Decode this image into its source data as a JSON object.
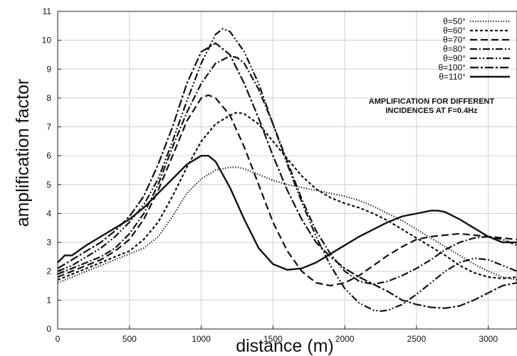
{
  "chart_data": {
    "type": "line",
    "title": "",
    "xlabel": "distance (m)",
    "ylabel": "amplification factor",
    "xlim": [
      0,
      3200
    ],
    "ylim": [
      0,
      11
    ],
    "grid": true,
    "legend_position": "top-right",
    "annotation": [
      "AMPLIFICATION FOR DIFFERENT",
      "INCIDENCES AT F=0.4Hz"
    ],
    "xticks": [
      0,
      500,
      1000,
      1500,
      2000,
      2500,
      3000
    ],
    "yticks": [
      0,
      1,
      2,
      3,
      4,
      5,
      6,
      7,
      8,
      9,
      10,
      11
    ],
    "series": [
      {
        "name": "θ=50°",
        "dash": "1.2,2.4",
        "width": 2.2,
        "x": [
          0,
          100,
          200,
          300,
          400,
          500,
          600,
          700,
          800,
          900,
          1000,
          1100,
          1200,
          1250,
          1300,
          1400,
          1500,
          1600,
          1700,
          1800,
          1900,
          2000,
          2100,
          2200,
          2300,
          2400,
          2500,
          2600,
          2700,
          2800,
          2900,
          3000,
          3100,
          3200
        ],
        "y": [
          1.6,
          1.8,
          2.0,
          2.2,
          2.4,
          2.6,
          2.8,
          3.2,
          3.9,
          4.7,
          5.2,
          5.5,
          5.6,
          5.6,
          5.55,
          5.35,
          5.15,
          5.0,
          4.9,
          4.8,
          4.7,
          4.6,
          4.45,
          4.25,
          4.0,
          3.75,
          3.45,
          3.15,
          2.85,
          2.55,
          2.25,
          2.0,
          1.8,
          1.7
        ]
      },
      {
        "name": "θ=60°",
        "dash": "4,3",
        "width": 2.2,
        "x": [
          0,
          100,
          200,
          300,
          400,
          500,
          600,
          700,
          800,
          900,
          1000,
          1100,
          1200,
          1250,
          1300,
          1400,
          1500,
          1600,
          1700,
          1800,
          1900,
          2000,
          2100,
          2200,
          2300,
          2400,
          2500,
          2600,
          2700,
          2800,
          2900,
          3000,
          3100,
          3200
        ],
        "y": [
          1.7,
          1.9,
          2.1,
          2.3,
          2.5,
          2.7,
          3.1,
          3.7,
          4.6,
          5.6,
          6.5,
          7.1,
          7.4,
          7.5,
          7.45,
          7.1,
          6.5,
          5.9,
          5.3,
          4.85,
          4.55,
          4.35,
          4.2,
          4.0,
          3.75,
          3.45,
          3.15,
          2.85,
          2.55,
          2.2,
          1.95,
          1.8,
          1.75,
          1.8
        ]
      },
      {
        "name": "θ=70°",
        "dash": "10,5",
        "width": 2.2,
        "x": [
          0,
          100,
          200,
          300,
          400,
          500,
          600,
          700,
          800,
          900,
          1000,
          1050,
          1100,
          1200,
          1300,
          1400,
          1500,
          1600,
          1700,
          1800,
          1900,
          2000,
          2100,
          2200,
          2300,
          2400,
          2500,
          2600,
          2700,
          2800,
          2900,
          3000,
          3100,
          3200
        ],
        "y": [
          1.8,
          2.0,
          2.2,
          2.4,
          2.7,
          3.1,
          3.8,
          4.8,
          6.0,
          7.2,
          8.0,
          8.1,
          8.0,
          7.4,
          6.3,
          5.0,
          3.7,
          2.7,
          2.0,
          1.6,
          1.5,
          1.6,
          1.85,
          2.2,
          2.55,
          2.85,
          3.1,
          3.2,
          3.25,
          3.3,
          3.25,
          3.2,
          3.15,
          3.1
        ]
      },
      {
        "name": "θ=80°",
        "dash": "10,3,2,3",
        "width": 2.2,
        "x": [
          0,
          100,
          200,
          300,
          400,
          500,
          600,
          700,
          800,
          900,
          1000,
          1100,
          1200,
          1250,
          1300,
          1400,
          1500,
          1600,
          1700,
          1800,
          1900,
          2000,
          2100,
          2200,
          2300,
          2400,
          2500,
          2600,
          2700,
          2800,
          2900,
          3000,
          3100,
          3200
        ],
        "y": [
          1.9,
          2.1,
          2.3,
          2.5,
          2.8,
          3.3,
          4.0,
          5.0,
          6.3,
          7.5,
          8.5,
          9.2,
          9.45,
          9.4,
          9.2,
          8.3,
          7.1,
          5.8,
          4.5,
          3.4,
          2.6,
          2.0,
          1.65,
          1.55,
          1.65,
          1.85,
          2.1,
          2.4,
          2.75,
          3.0,
          3.15,
          3.2,
          3.1,
          2.9
        ]
      },
      {
        "name": "θ=90°",
        "dash": "10,3,2,3,2,3",
        "width": 2.2,
        "x": [
          0,
          100,
          200,
          300,
          400,
          500,
          600,
          700,
          800,
          900,
          1000,
          1100,
          1150,
          1200,
          1300,
          1400,
          1500,
          1600,
          1700,
          1800,
          1900,
          2000,
          2100,
          2200,
          2250,
          2300,
          2400,
          2500,
          2600,
          2700,
          2800,
          2900,
          3000,
          3100,
          3200
        ],
        "y": [
          2.0,
          2.2,
          2.5,
          2.8,
          3.2,
          3.7,
          4.3,
          5.2,
          6.5,
          7.9,
          9.2,
          10.2,
          10.4,
          10.3,
          9.6,
          8.5,
          7.1,
          5.7,
          4.4,
          3.2,
          2.2,
          1.4,
          0.9,
          0.65,
          0.62,
          0.65,
          0.85,
          1.2,
          1.6,
          2.0,
          2.3,
          2.45,
          2.4,
          2.2,
          2.0
        ]
      },
      {
        "name": "θ=100°",
        "dash": "12,3,3,3",
        "width": 2.2,
        "x": [
          0,
          100,
          200,
          300,
          400,
          500,
          600,
          700,
          800,
          900,
          1000,
          1100,
          1200,
          1300,
          1400,
          1500,
          1600,
          1700,
          1800,
          1900,
          2000,
          2100,
          2200,
          2300,
          2400,
          2500,
          2600,
          2700,
          2800,
          2900,
          3000,
          3100,
          3200
        ],
        "y": [
          2.1,
          2.4,
          2.7,
          3.0,
          3.4,
          3.9,
          4.6,
          5.7,
          7.0,
          8.5,
          9.6,
          9.9,
          9.5,
          8.5,
          7.3,
          6.0,
          4.8,
          3.8,
          3.0,
          2.5,
          2.1,
          1.8,
          1.55,
          1.3,
          1.0,
          0.85,
          0.75,
          0.72,
          0.8,
          1.0,
          1.25,
          1.5,
          1.6
        ]
      },
      {
        "name": "θ=110°",
        "dash": "",
        "width": 2.4,
        "x": [
          0,
          50,
          100,
          200,
          300,
          400,
          500,
          600,
          700,
          800,
          900,
          1000,
          1050,
          1100,
          1200,
          1300,
          1400,
          1500,
          1600,
          1700,
          1800,
          1900,
          2000,
          2100,
          2200,
          2300,
          2400,
          2500,
          2600,
          2650,
          2700,
          2800,
          2900,
          3000,
          3100,
          3200
        ],
        "y": [
          2.3,
          2.55,
          2.55,
          2.9,
          3.2,
          3.5,
          3.8,
          4.2,
          4.7,
          5.2,
          5.7,
          6.0,
          6.0,
          5.8,
          4.9,
          3.8,
          2.8,
          2.25,
          2.05,
          2.1,
          2.3,
          2.6,
          2.9,
          3.2,
          3.45,
          3.7,
          3.9,
          4.0,
          4.1,
          4.1,
          4.05,
          3.8,
          3.5,
          3.2,
          3.0,
          3.0
        ]
      }
    ]
  }
}
